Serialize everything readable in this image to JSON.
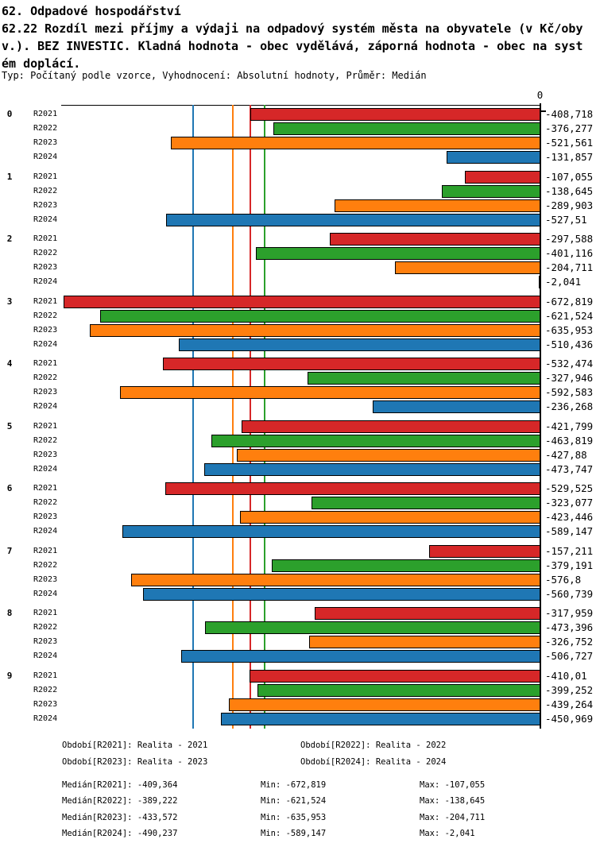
{
  "title": {
    "lines": [
      "62. Odpadové hospodářství",
      "62.22 Rozdíl mezi příjmy a výdaji na odpadový systém města na obyvatele (v Kč/oby",
      "v.). BEZ INVESTIC. Kladná hodnota - obec vydělává, záporná hodnota - obec na syst",
      "ém doplácí."
    ],
    "meta": "Typ: Počítaný podle vzorce, Vyhodnocení: Absolutní hodnoty, Průměr: Medián"
  },
  "chart_data": {
    "type": "bar",
    "orientation": "horizontal",
    "title": "62.22 Rozdíl mezi příjmy a výdaji na odpadový systém města na obyvatele (v Kč/obyv.). BEZ INVESTIC.",
    "xlabel": "",
    "ylabel": "",
    "xlim": [
      -676,
      0
    ],
    "axis_zero_label": "0",
    "grid": false,
    "legend_position": "bottom",
    "series": [
      {
        "name": "R2021",
        "color": "#d62728"
      },
      {
        "name": "R2022",
        "color": "#2ca02c"
      },
      {
        "name": "R2023",
        "color": "#ff7f0e"
      },
      {
        "name": "R2024",
        "color": "#1f77b4"
      }
    ],
    "groups": [
      {
        "label": "0",
        "bars": [
          {
            "series": "R2021",
            "value": -408.718,
            "label": "-408,718"
          },
          {
            "series": "R2022",
            "value": -376.277,
            "label": "-376,277"
          },
          {
            "series": "R2023",
            "value": -521.561,
            "label": "-521,561"
          },
          {
            "series": "R2024",
            "value": -131.857,
            "label": "-131,857"
          }
        ]
      },
      {
        "label": "1",
        "bars": [
          {
            "series": "R2021",
            "value": -107.055,
            "label": "-107,055"
          },
          {
            "series": "R2022",
            "value": -138.645,
            "label": "-138,645"
          },
          {
            "series": "R2023",
            "value": -289.903,
            "label": "-289,903"
          },
          {
            "series": "R2024",
            "value": -527.51,
            "label": "-527,51"
          }
        ]
      },
      {
        "label": "2",
        "bars": [
          {
            "series": "R2021",
            "value": -297.588,
            "label": "-297,588"
          },
          {
            "series": "R2022",
            "value": -401.116,
            "label": "-401,116"
          },
          {
            "series": "R2023",
            "value": -204.711,
            "label": "-204,711"
          },
          {
            "series": "R2024",
            "value": -2.041,
            "label": "-2,041"
          }
        ]
      },
      {
        "label": "3",
        "bars": [
          {
            "series": "R2021",
            "value": -672.819,
            "label": "-672,819"
          },
          {
            "series": "R2022",
            "value": -621.524,
            "label": "-621,524"
          },
          {
            "series": "R2023",
            "value": -635.953,
            "label": "-635,953"
          },
          {
            "series": "R2024",
            "value": -510.436,
            "label": "-510,436"
          }
        ]
      },
      {
        "label": "4",
        "bars": [
          {
            "series": "R2021",
            "value": -532.474,
            "label": "-532,474"
          },
          {
            "series": "R2022",
            "value": -327.946,
            "label": "-327,946"
          },
          {
            "series": "R2023",
            "value": -592.583,
            "label": "-592,583"
          },
          {
            "series": "R2024",
            "value": -236.268,
            "label": "-236,268"
          }
        ]
      },
      {
        "label": "5",
        "bars": [
          {
            "series": "R2021",
            "value": -421.799,
            "label": "-421,799"
          },
          {
            "series": "R2022",
            "value": -463.819,
            "label": "-463,819"
          },
          {
            "series": "R2023",
            "value": -427.88,
            "label": "-427,88"
          },
          {
            "series": "R2024",
            "value": -473.747,
            "label": "-473,747"
          }
        ]
      },
      {
        "label": "6",
        "bars": [
          {
            "series": "R2021",
            "value": -529.525,
            "label": "-529,525"
          },
          {
            "series": "R2022",
            "value": -323.077,
            "label": "-323,077"
          },
          {
            "series": "R2023",
            "value": -423.446,
            "label": "-423,446"
          },
          {
            "series": "R2024",
            "value": -589.147,
            "label": "-589,147"
          }
        ]
      },
      {
        "label": "7",
        "bars": [
          {
            "series": "R2021",
            "value": -157.211,
            "label": "-157,211"
          },
          {
            "series": "R2022",
            "value": -379.191,
            "label": "-379,191"
          },
          {
            "series": "R2023",
            "value": -576.8,
            "label": "-576,8"
          },
          {
            "series": "R2024",
            "value": -560.739,
            "label": "-560,739"
          }
        ]
      },
      {
        "label": "8",
        "bars": [
          {
            "series": "R2021",
            "value": -317.959,
            "label": "-317,959"
          },
          {
            "series": "R2022",
            "value": -473.396,
            "label": "-473,396"
          },
          {
            "series": "R2023",
            "value": -326.752,
            "label": "-326,752"
          },
          {
            "series": "R2024",
            "value": -506.727,
            "label": "-506,727"
          }
        ]
      },
      {
        "label": "9",
        "bars": [
          {
            "series": "R2021",
            "value": -410.01,
            "label": "-410,01"
          },
          {
            "series": "R2022",
            "value": -399.252,
            "label": "-399,252"
          },
          {
            "series": "R2023",
            "value": -439.264,
            "label": "-439,264"
          },
          {
            "series": "R2024",
            "value": -450.969,
            "label": "-450,969"
          }
        ]
      }
    ],
    "median_lines": [
      {
        "series": "R2024",
        "value": -490.237,
        "color": "#1f77b4"
      },
      {
        "series": "R2023",
        "value": -433.572,
        "color": "#ff7f0e"
      },
      {
        "series": "R2021",
        "value": -409.364,
        "color": "#d62728"
      },
      {
        "series": "R2022",
        "value": -389.222,
        "color": "#2ca02c"
      }
    ]
  },
  "legend": {
    "items": [
      "Období[R2021]: Realita - 2021",
      "Období[R2022]: Realita - 2022",
      "Období[R2023]: Realita - 2023",
      "Období[R2024]: Realita - 2024"
    ]
  },
  "stats": {
    "rows": [
      {
        "median": "Medián[R2021]: -409,364",
        "min": "Min: -672,819",
        "max": "Max: -107,055"
      },
      {
        "median": "Medián[R2022]: -389,222",
        "min": "Min: -621,524",
        "max": "Max: -138,645"
      },
      {
        "median": "Medián[R2023]: -433,572",
        "min": "Min: -635,953",
        "max": "Max: -204,711"
      },
      {
        "median": "Medián[R2024]: -490,237",
        "min": "Min: -589,147",
        "max": "Max: -2,041"
      }
    ]
  }
}
